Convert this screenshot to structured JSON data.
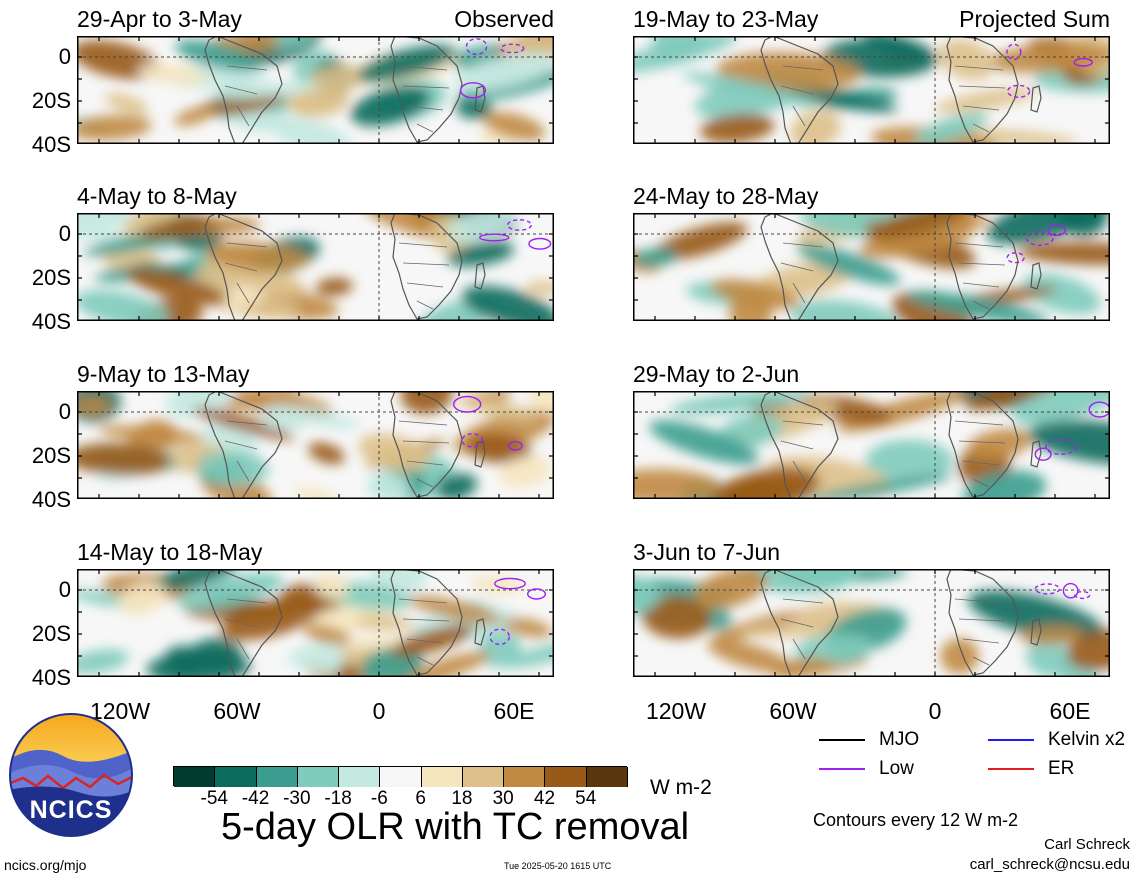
{
  "panels": [
    {
      "title": "29-Apr to 3-May",
      "tag": "Observed",
      "column": "left",
      "row": 0,
      "style": "obs-a"
    },
    {
      "title": "4-May to 8-May",
      "tag": "",
      "column": "left",
      "row": 1,
      "style": "obs-b"
    },
    {
      "title": "9-May to 13-May",
      "tag": "",
      "column": "left",
      "row": 2,
      "style": "obs-c"
    },
    {
      "title": "14-May to 18-May",
      "tag": "",
      "column": "left",
      "row": 3,
      "style": "obs-d"
    },
    {
      "title": "19-May to 23-May",
      "tag": "Projected Sum",
      "column": "right",
      "row": 0,
      "style": "prj-a"
    },
    {
      "title": "24-May to 28-May",
      "tag": "",
      "column": "right",
      "row": 1,
      "style": "prj-b"
    },
    {
      "title": "29-May to 2-Jun",
      "tag": "",
      "column": "right",
      "row": 2,
      "style": "prj-c"
    },
    {
      "title": "3-Jun to 7-Jun",
      "tag": "",
      "column": "right",
      "row": 3,
      "style": "prj-d"
    }
  ],
  "y_ticks": [
    "0",
    "20S",
    "40S"
  ],
  "x_ticks": [
    "120W",
    "60W",
    "0",
    "60E"
  ],
  "colorbar": {
    "colors": [
      "#013a2e",
      "#0b6b5d",
      "#3a9d8f",
      "#7fcbbd",
      "#c4e9e1",
      "#f7f7f7",
      "#f6e6c0",
      "#ddc08a",
      "#c08a42",
      "#985a18",
      "#5a360c"
    ],
    "labels": [
      "-54",
      "-42",
      "-30",
      "-18",
      "-6",
      "6",
      "18",
      "30",
      "42",
      "54"
    ],
    "units": "W m-2"
  },
  "legend": [
    {
      "label": "MJO",
      "color": "#000000"
    },
    {
      "label": "Kelvin x2",
      "color": "#1a1aff"
    },
    {
      "label": "Low",
      "color": "#a020f0"
    },
    {
      "label": "ER",
      "color": "#e02020"
    }
  ],
  "main_title": "5-day OLR with TC removal",
  "contour_note": "Contours every 12 W m-2",
  "author": "Carl Schreck",
  "email": "carl_schreck@ncsu.edu",
  "website": "ncics.org/mjo",
  "timestamp": "Tue 2025-05-20 1615 UTC",
  "logo_text": "NCICS"
}
